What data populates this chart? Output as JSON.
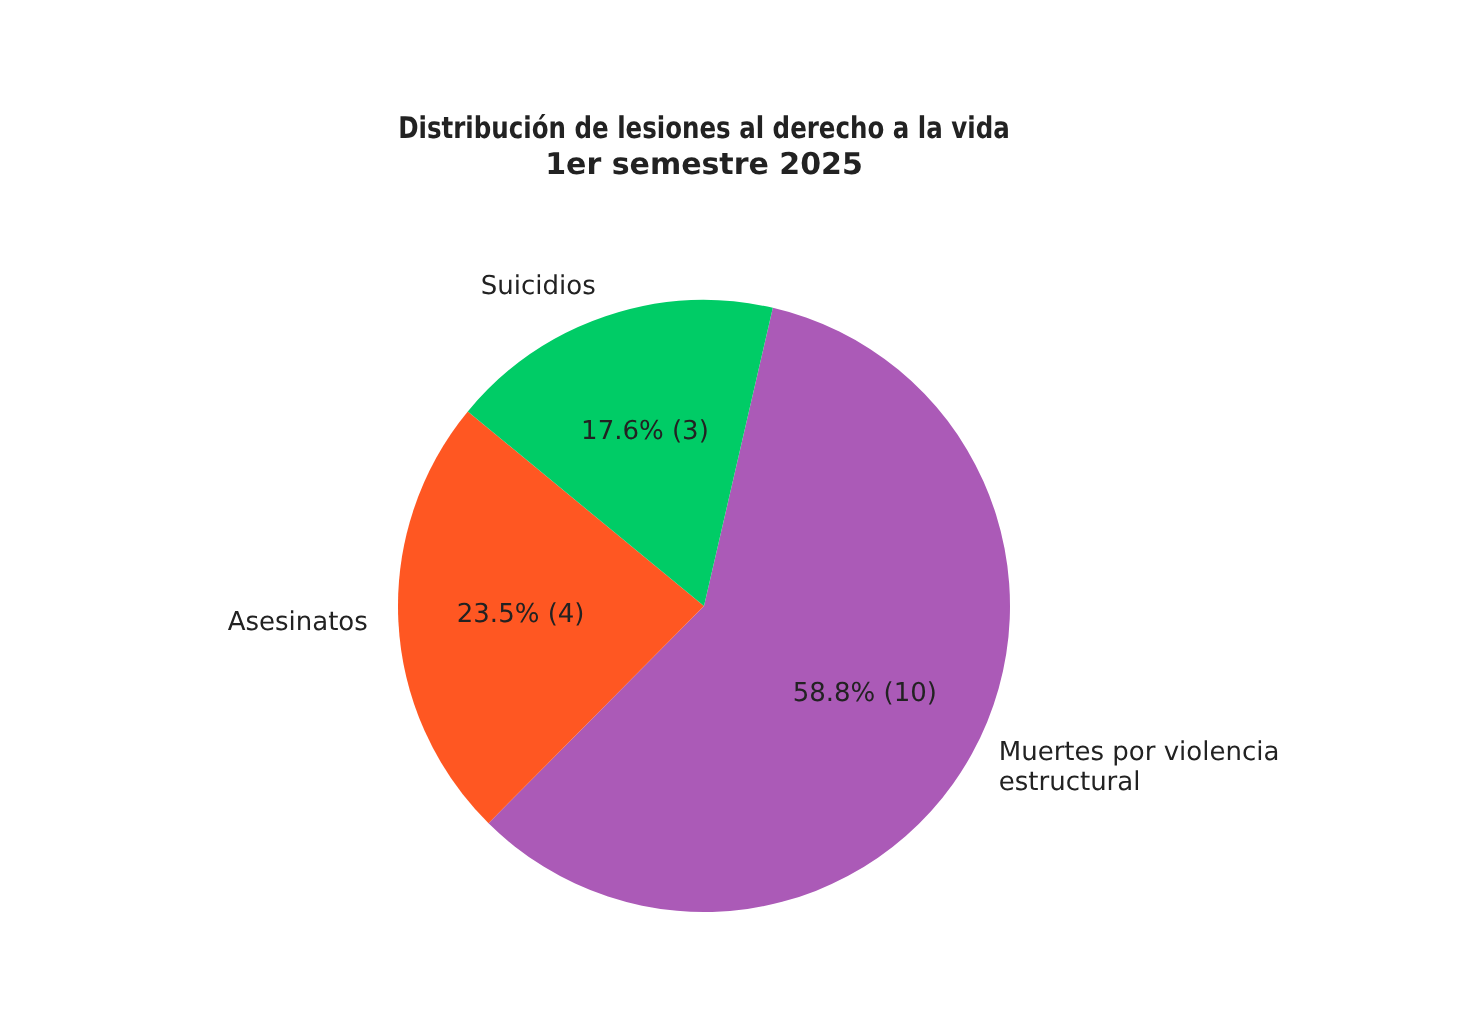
{
  "chart_data": {
    "type": "pie",
    "title": "Distribución de lesiones al derecho a la vida\n1er semestre 2025",
    "categories": [
      "Muertes por violencia\nestructural",
      "Asesinatos",
      "Suicidios"
    ],
    "values": [
      10,
      4,
      3
    ],
    "value_labels": [
      "58.8% (10)",
      "23.5% (4)",
      "17.6% (3)"
    ],
    "colors": [
      "#ab5ab7",
      "#ff5722",
      "#00cc66"
    ],
    "legend": false
  }
}
